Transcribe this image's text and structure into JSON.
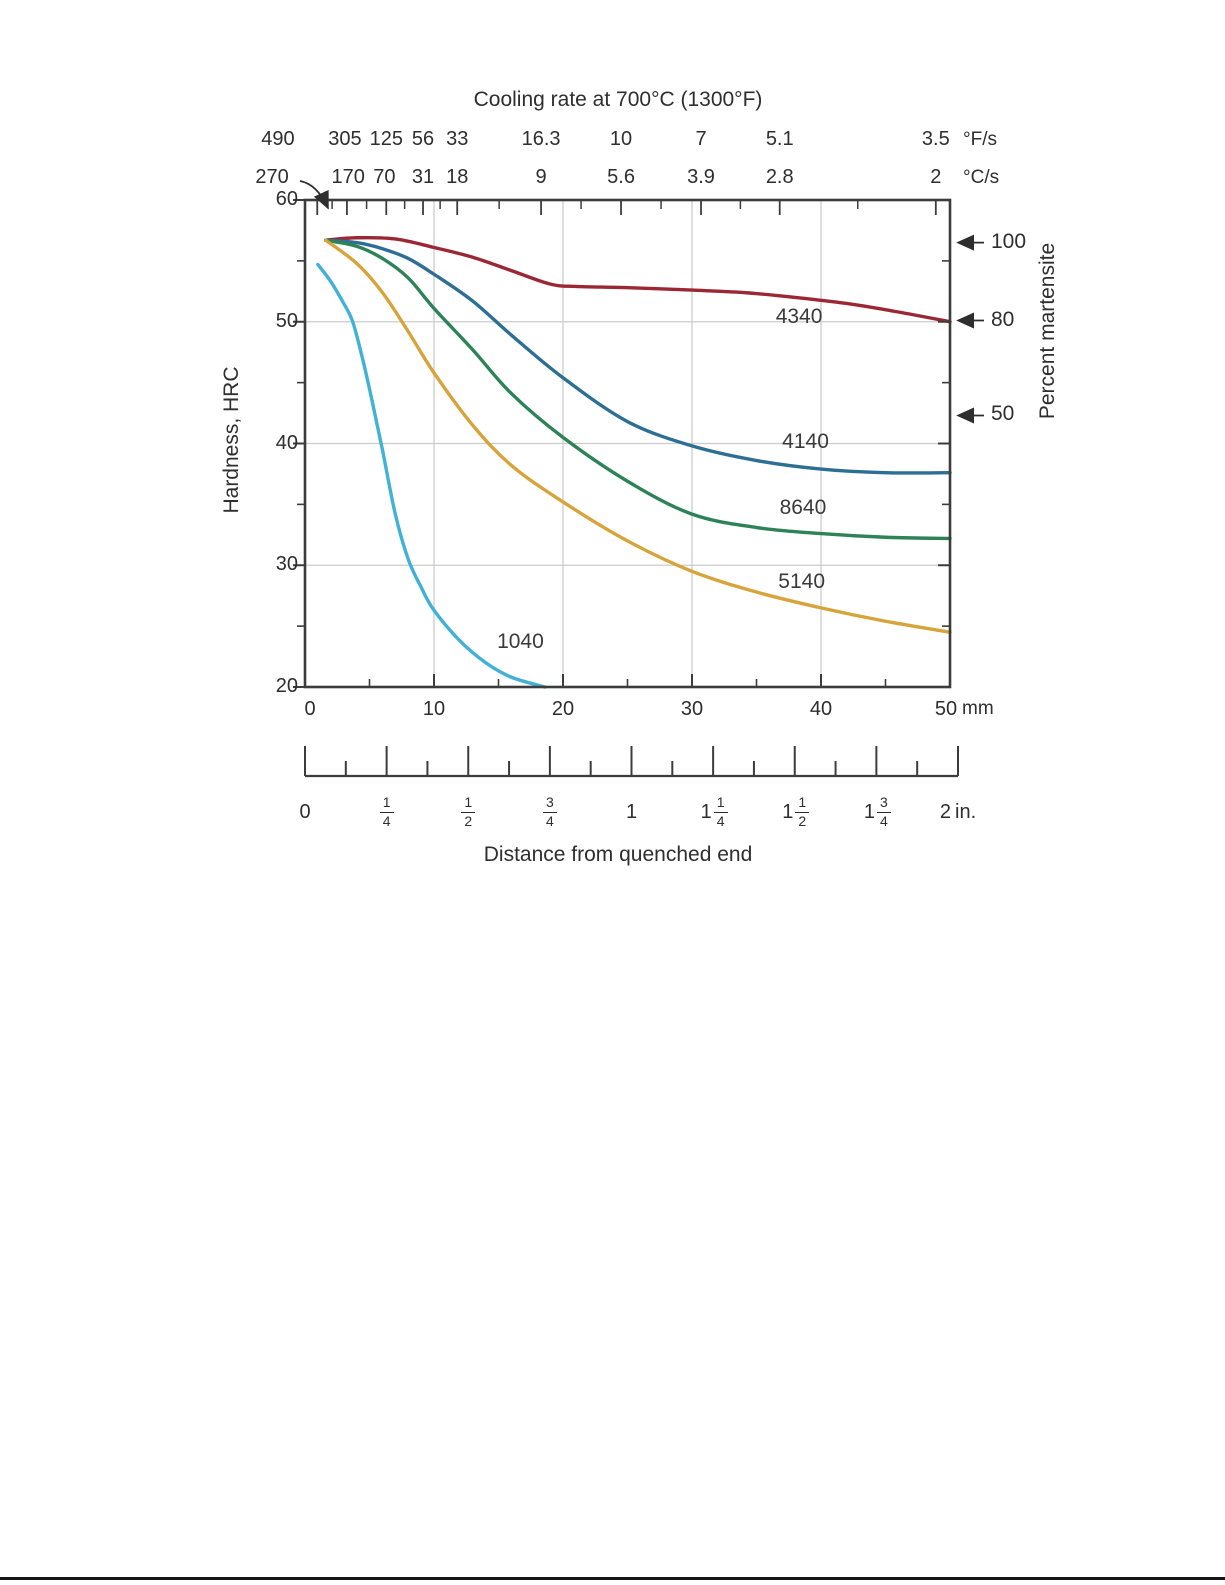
{
  "figure": {
    "top_title": "Cooling rate at 700°C (1300°F)",
    "fps_unit": "°F/s",
    "cps_unit": "°C/s",
    "mm_unit": "mm",
    "in_unit": "in.",
    "left_axis_label": "Hardness, HRC",
    "right_axis_label": "Percent martensite",
    "bottom_title": "Distance from quenched end"
  },
  "chart_data": {
    "type": "line",
    "title": "Cooling rate at 700°C (1300°F)",
    "xlabel": "Distance from quenched end",
    "ylabel": "Hardness, HRC",
    "ylabel_right": "Percent martensite",
    "xlim_mm": [
      0,
      50
    ],
    "ylim_hrc": [
      20,
      60
    ],
    "grid": "on",
    "x_ticks_mm": [
      0,
      10,
      20,
      30,
      40,
      50
    ],
    "x_minor_ticks_mm": [
      5,
      15,
      25,
      35,
      45
    ],
    "y_ticks_hrc": [
      60,
      50,
      40,
      30,
      20
    ],
    "y_minor_ticks_hrc": [
      55,
      45,
      35,
      25
    ],
    "cooling_scale": {
      "fps": [
        "490",
        "305",
        "125",
        "56",
        "33",
        "16.3",
        "10",
        "7",
        "5.1",
        "3.5"
      ],
      "fps_frac": [
        -0.042,
        0.062,
        0.126,
        0.183,
        0.236,
        0.366,
        0.49,
        0.614,
        0.736,
        0.978
      ],
      "cps": [
        "270",
        "170",
        "70",
        "31",
        "18",
        "9",
        "5.6",
        "3.9",
        "2.8",
        "2"
      ],
      "cps_frac": [
        -0.051,
        0.067,
        0.123,
        0.183,
        0.236,
        0.366,
        0.49,
        0.614,
        0.736,
        0.978
      ],
      "tick_frac_long": [
        0.019,
        0.065,
        0.126,
        0.183,
        0.236,
        0.366,
        0.49,
        0.614,
        0.736,
        0.978
      ],
      "tick_frac_short": [
        0.042,
        0.0955,
        0.1545,
        0.2095,
        0.301,
        0.428,
        0.552,
        0.675,
        0.857
      ]
    },
    "martensite_marks": [
      {
        "label": "100",
        "hrc": 56.5
      },
      {
        "label": "80",
        "hrc": 50.1
      },
      {
        "label": "50",
        "hrc": 42.3
      }
    ],
    "inch_scale": {
      "labels": [
        "0",
        "1/4",
        "1/2",
        "3/4",
        "1",
        "1 1/4",
        "1 1/2",
        "1 3/4",
        "2"
      ],
      "max_in": 2,
      "minor_step_in": 0.125
    },
    "series": [
      {
        "name": "4340",
        "color": "#9b2734",
        "label_mm": 38.3,
        "label_hrc": 50.4,
        "points": [
          [
            1.6,
            56.7
          ],
          [
            4,
            56.9
          ],
          [
            7,
            56.8
          ],
          [
            10,
            56.1
          ],
          [
            13,
            55.3
          ],
          [
            16,
            54.2
          ],
          [
            19,
            53.1
          ],
          [
            21,
            52.9
          ],
          [
            25,
            52.8
          ],
          [
            30,
            52.6
          ],
          [
            34,
            52.4
          ],
          [
            38,
            52.0
          ],
          [
            42,
            51.5
          ],
          [
            46,
            50.8
          ],
          [
            50,
            50.0
          ]
        ]
      },
      {
        "name": "4140",
        "color": "#2d6e94",
        "label_mm": 38.8,
        "label_hrc": 40.1,
        "points": [
          [
            1.6,
            56.7
          ],
          [
            4,
            56.5
          ],
          [
            6,
            56.0
          ],
          [
            8,
            55.2
          ],
          [
            10,
            53.9
          ],
          [
            13,
            51.7
          ],
          [
            16,
            48.9
          ],
          [
            20,
            45.4
          ],
          [
            25,
            41.8
          ],
          [
            30,
            39.8
          ],
          [
            35,
            38.6
          ],
          [
            40,
            37.9
          ],
          [
            45,
            37.6
          ],
          [
            50,
            37.6
          ]
        ]
      },
      {
        "name": "8640",
        "color": "#2e8257",
        "label_mm": 38.6,
        "label_hrc": 34.7,
        "points": [
          [
            1.6,
            56.7
          ],
          [
            4,
            56.2
          ],
          [
            6,
            55.2
          ],
          [
            8,
            53.6
          ],
          [
            10,
            51.1
          ],
          [
            13,
            47.7
          ],
          [
            16,
            44.1
          ],
          [
            20,
            40.5
          ],
          [
            25,
            36.9
          ],
          [
            30,
            34.2
          ],
          [
            35,
            33.1
          ],
          [
            40,
            32.6
          ],
          [
            45,
            32.3
          ],
          [
            50,
            32.2
          ]
        ]
      },
      {
        "name": "5140",
        "color": "#d7a43c",
        "label_mm": 38.5,
        "label_hrc": 28.6,
        "points": [
          [
            1.6,
            56.7
          ],
          [
            4,
            54.8
          ],
          [
            6,
            52.4
          ],
          [
            8,
            49.2
          ],
          [
            10,
            45.8
          ],
          [
            13,
            41.5
          ],
          [
            16,
            38.2
          ],
          [
            20,
            35.2
          ],
          [
            25,
            32.0
          ],
          [
            30,
            29.5
          ],
          [
            35,
            27.8
          ],
          [
            40,
            26.5
          ],
          [
            45,
            25.4
          ],
          [
            50,
            24.5
          ]
        ]
      },
      {
        "name": "1040",
        "color": "#41b1d5",
        "label_mm": 16.7,
        "label_hrc": 23.7,
        "points": [
          [
            1,
            54.7
          ],
          [
            2,
            53.3
          ],
          [
            3,
            51.5
          ],
          [
            3.7,
            50.0
          ],
          [
            4.5,
            46.8
          ],
          [
            5.2,
            43.5
          ],
          [
            6,
            39.5
          ],
          [
            7,
            34.2
          ],
          [
            8,
            30.5
          ],
          [
            9,
            28.2
          ],
          [
            10,
            26.3
          ],
          [
            12,
            23.8
          ],
          [
            14,
            22.0
          ],
          [
            16,
            20.8
          ],
          [
            18.6,
            20.0
          ]
        ]
      }
    ],
    "layout_hint": {
      "legend": "inline-curve-labels",
      "grid_color": "#cccccc"
    }
  }
}
